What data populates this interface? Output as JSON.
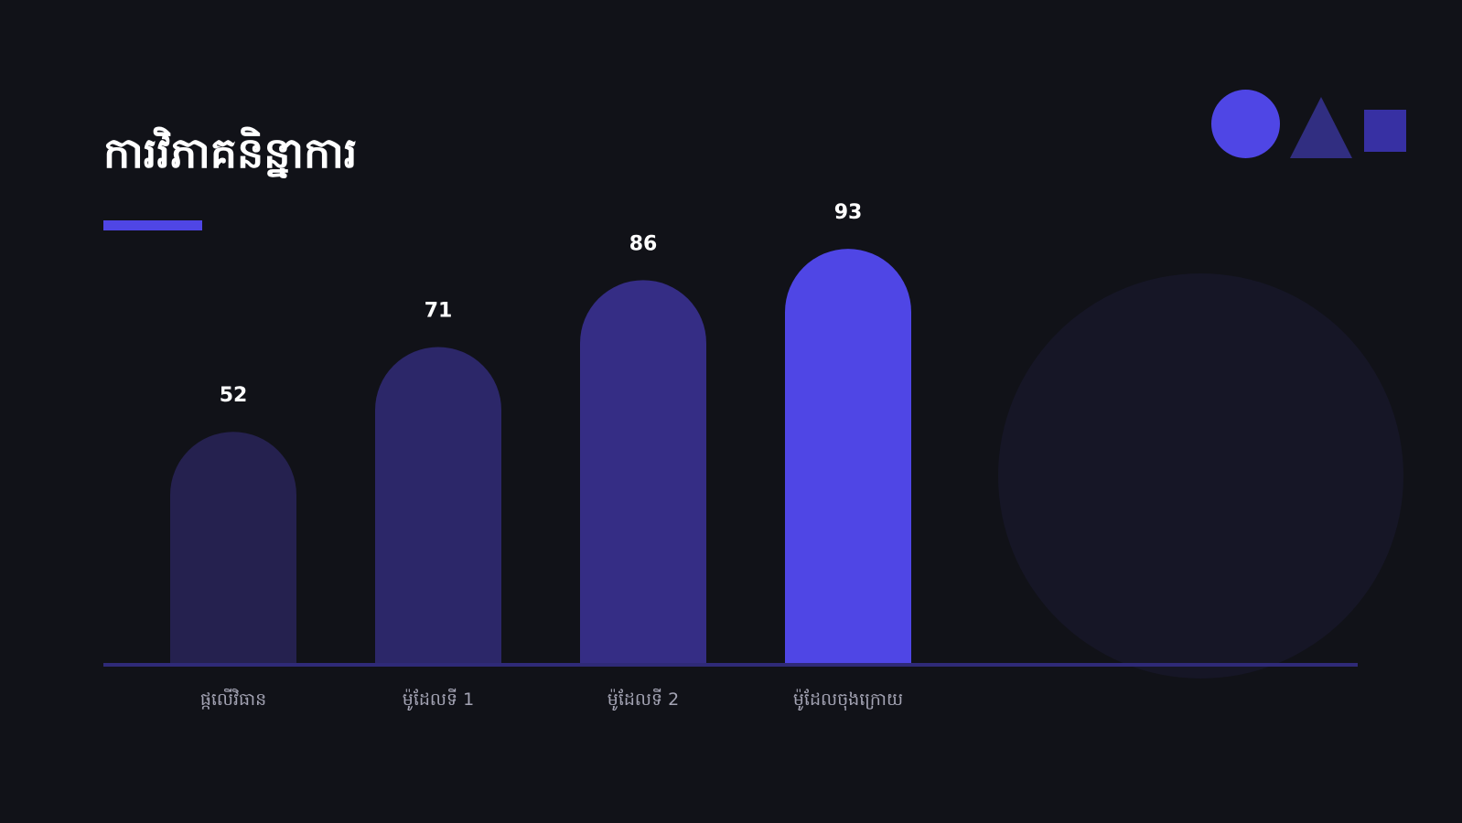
{
  "slide": {
    "title": "ការវិភាគនិន្នាការ"
  },
  "colors": {
    "background": "#111218",
    "accent": "#4f46e5",
    "bar_colors": [
      "#25214f",
      "#2c2769",
      "#352d85",
      "#4f46e5"
    ],
    "axis": "#2f2a78"
  },
  "decorations": {
    "shapes": [
      "circle",
      "triangle",
      "square"
    ]
  },
  "chart_data": {
    "type": "bar",
    "categories": [
      "ផ្កលើវិធាន",
      "ម៉ូដែលទី 1",
      "ម៉ូដែលទី 2",
      "ម៉ូដែលចុងក្រោយ"
    ],
    "values": [
      52,
      71,
      86,
      93
    ],
    "title": "ការវិភាគនិន្នាការ",
    "xlabel": "",
    "ylabel": "",
    "ylim": [
      0,
      100
    ],
    "grid": false,
    "data_labels": true
  }
}
